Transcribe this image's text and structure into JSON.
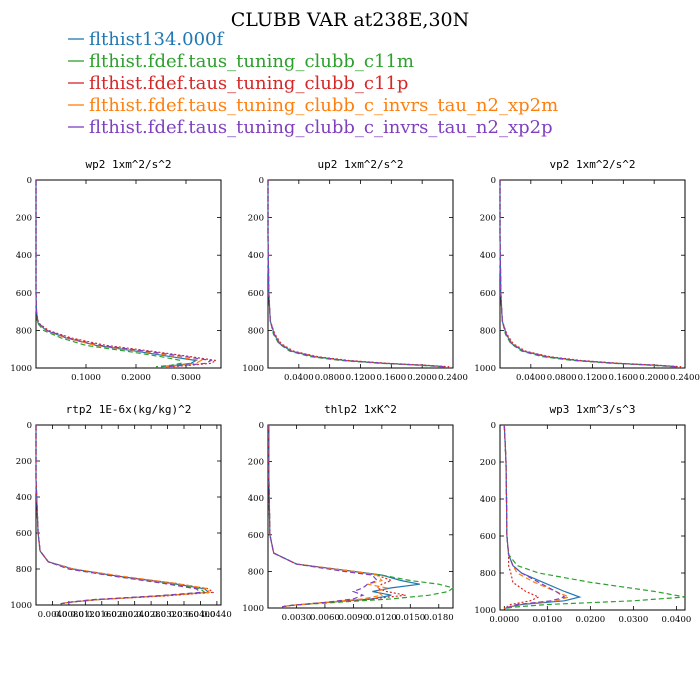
{
  "title": "CLUBB VAR at238E,30N",
  "legend": [
    {
      "name": "flthist134.000f",
      "color": "#1f77b4"
    },
    {
      "name": "flthist.fdef.taus_tuning_clubb_c11m",
      "color": "#2ca02c"
    },
    {
      "name": "flthist.fdef.taus_tuning_clubb_c11p",
      "color": "#d62728"
    },
    {
      "name": "flthist.fdef.taus_tuning_clubb_c_invrs_tau_n2_xp2m",
      "color": "#ff7f0e"
    },
    {
      "name": "flthist.fdef.taus_tuning_clubb_c_invrs_tau_n2_xp2p",
      "color": "#7f3fbf"
    }
  ],
  "chart_data": [
    {
      "type": "line",
      "title": "wp2  1xm^2/s^2",
      "xlim": [
        0,
        0.37
      ],
      "ylim": [
        0,
        1000
      ],
      "y_reversed": true,
      "xticks": [
        0.1,
        0.2,
        0.3
      ],
      "xtick_labels": [
        "0.1000",
        "0.2000",
        "0.3000"
      ],
      "yticks": [
        0,
        200,
        400,
        600,
        800,
        1000
      ],
      "ytick_labels": [
        "0",
        "200",
        "400",
        "600",
        "800",
        "1000"
      ],
      "y": [
        0,
        300,
        600,
        700,
        760,
        800,
        840,
        880,
        910,
        940,
        960,
        975,
        985,
        993
      ],
      "series": [
        {
          "values": [
            0,
            0,
            0,
            0.001,
            0.004,
            0.02,
            0.06,
            0.12,
            0.2,
            0.27,
            0.32,
            0.31,
            0.28,
            0.25
          ]
        },
        {
          "values": [
            0,
            0,
            0,
            0.001,
            0.003,
            0.015,
            0.05,
            0.1,
            0.18,
            0.25,
            0.29,
            0.29,
            0.27,
            0.24
          ]
        },
        {
          "values": [
            0,
            0,
            0,
            0.001,
            0.005,
            0.025,
            0.07,
            0.14,
            0.23,
            0.31,
            0.36,
            0.35,
            0.31,
            0.27
          ]
        },
        {
          "values": [
            0,
            0,
            0,
            0.001,
            0.004,
            0.02,
            0.06,
            0.12,
            0.21,
            0.28,
            0.33,
            0.32,
            0.29,
            0.26
          ]
        },
        {
          "values": [
            0,
            0,
            0,
            0.001,
            0.004,
            0.022,
            0.065,
            0.13,
            0.22,
            0.3,
            0.35,
            0.34,
            0.3,
            0.26
          ]
        }
      ]
    },
    {
      "type": "line",
      "title": "up2  1xm^2/s^2",
      "xlim": [
        0,
        0.24
      ],
      "ylim": [
        0,
        1000
      ],
      "y_reversed": true,
      "xticks": [
        0.04,
        0.08,
        0.12,
        0.16,
        0.2,
        0.24
      ],
      "xtick_labels": [
        "0.0400",
        "0.0800",
        "0.1200",
        "0.1600",
        "0.2000",
        "0.2400"
      ],
      "yticks": [
        0,
        200,
        400,
        600,
        800,
        1000
      ],
      "ytick_labels": [
        "0",
        "200",
        "400",
        "600",
        "800",
        "1000"
      ],
      "y": [
        0,
        300,
        600,
        750,
        820,
        870,
        910,
        940,
        960,
        975,
        985,
        993
      ],
      "series": [
        {
          "values": [
            0,
            0,
            0.001,
            0.003,
            0.008,
            0.015,
            0.03,
            0.06,
            0.1,
            0.15,
            0.2,
            0.23
          ]
        },
        {
          "values": [
            0,
            0,
            0.001,
            0.003,
            0.007,
            0.014,
            0.028,
            0.055,
            0.095,
            0.145,
            0.195,
            0.225
          ]
        },
        {
          "values": [
            0,
            0,
            0.001,
            0.003,
            0.009,
            0.017,
            0.033,
            0.065,
            0.105,
            0.155,
            0.205,
            0.235
          ]
        },
        {
          "values": [
            0,
            0,
            0.001,
            0.003,
            0.008,
            0.016,
            0.031,
            0.062,
            0.1,
            0.15,
            0.2,
            0.23
          ]
        },
        {
          "values": [
            0,
            0,
            0.001,
            0.003,
            0.008,
            0.015,
            0.03,
            0.06,
            0.1,
            0.15,
            0.2,
            0.23
          ]
        }
      ]
    },
    {
      "type": "line",
      "title": "vp2  1xm^2/s^2",
      "xlim": [
        0,
        0.24
      ],
      "ylim": [
        0,
        1000
      ],
      "y_reversed": true,
      "xticks": [
        0.04,
        0.08,
        0.12,
        0.16,
        0.2,
        0.24
      ],
      "xtick_labels": [
        "0.0400",
        "0.0800",
        "0.1200",
        "0.1600",
        "0.2000",
        "0.2400"
      ],
      "yticks": [
        0,
        200,
        400,
        600,
        800,
        1000
      ],
      "ytick_labels": [
        "0",
        "200",
        "400",
        "600",
        "800",
        "1000"
      ],
      "y": [
        0,
        300,
        600,
        750,
        820,
        870,
        910,
        940,
        960,
        975,
        985,
        993
      ],
      "series": [
        {
          "values": [
            0,
            0,
            0.001,
            0.003,
            0.008,
            0.015,
            0.03,
            0.06,
            0.1,
            0.15,
            0.2,
            0.23
          ]
        },
        {
          "values": [
            0,
            0,
            0.001,
            0.003,
            0.007,
            0.014,
            0.028,
            0.055,
            0.095,
            0.145,
            0.195,
            0.225
          ]
        },
        {
          "values": [
            0,
            0,
            0.001,
            0.003,
            0.009,
            0.017,
            0.033,
            0.065,
            0.105,
            0.155,
            0.205,
            0.235
          ]
        },
        {
          "values": [
            0,
            0,
            0.001,
            0.003,
            0.008,
            0.016,
            0.031,
            0.062,
            0.1,
            0.15,
            0.2,
            0.23
          ]
        },
        {
          "values": [
            0,
            0,
            0.001,
            0.003,
            0.008,
            0.015,
            0.03,
            0.06,
            0.1,
            0.15,
            0.2,
            0.23
          ]
        }
      ]
    },
    {
      "type": "line",
      "title": "rtp2  1E-6x(kg/kg)^2",
      "xlim": [
        0,
        0.045
      ],
      "ylim": [
        0,
        1000
      ],
      "y_reversed": true,
      "xticks": [
        0.004,
        0.008,
        0.012,
        0.016,
        0.02,
        0.024,
        0.028,
        0.032,
        0.036,
        0.04,
        0.044
      ],
      "xtick_labels": [
        "0.0040",
        "0.0080",
        "0.0120",
        "0.0160",
        "0.0200",
        "0.0240",
        "0.0280",
        "0.0320",
        "0.0360",
        "0.0400",
        "0.0440"
      ],
      "yticks": [
        0,
        200,
        400,
        600,
        800,
        1000
      ],
      "ytick_labels": [
        "0",
        "200",
        "400",
        "600",
        "800",
        "1000"
      ],
      "y": [
        0,
        300,
        600,
        700,
        760,
        800,
        840,
        880,
        910,
        930,
        950,
        970,
        985,
        993
      ],
      "series": [
        {
          "values": [
            0,
            0,
            0.0005,
            0.001,
            0.003,
            0.009,
            0.02,
            0.033,
            0.041,
            0.042,
            0.03,
            0.015,
            0.008,
            0.006
          ]
        },
        {
          "values": [
            0,
            0,
            0.0005,
            0.001,
            0.003,
            0.008,
            0.019,
            0.032,
            0.04,
            0.041,
            0.029,
            0.014,
            0.008,
            0.006
          ]
        },
        {
          "values": [
            0,
            0,
            0.0005,
            0.001,
            0.003,
            0.009,
            0.02,
            0.034,
            0.042,
            0.043,
            0.031,
            0.015,
            0.008,
            0.006
          ]
        },
        {
          "values": [
            0,
            0,
            0.0005,
            0.001,
            0.003,
            0.009,
            0.021,
            0.034,
            0.042,
            0.042,
            0.03,
            0.015,
            0.008,
            0.006
          ]
        },
        {
          "values": [
            0,
            0,
            0.0005,
            0.001,
            0.003,
            0.008,
            0.019,
            0.031,
            0.039,
            0.04,
            0.029,
            0.014,
            0.008,
            0.006
          ]
        }
      ]
    },
    {
      "type": "line",
      "title": "thlp2  1xK^2",
      "xlim": [
        0,
        0.0195
      ],
      "ylim": [
        0,
        1000
      ],
      "y_reversed": true,
      "xticks": [
        0.003,
        0.006,
        0.009,
        0.012,
        0.015,
        0.018
      ],
      "xtick_labels": [
        "0.0030",
        "0.0060",
        "0.0090",
        "0.0120",
        "0.0150",
        "0.0180"
      ],
      "yticks": [
        0,
        200,
        400,
        600,
        800,
        1000
      ],
      "ytick_labels": [
        "0",
        "200",
        "400",
        "600",
        "800",
        "1000"
      ],
      "y": [
        0,
        300,
        600,
        700,
        760,
        800,
        820,
        850,
        870,
        890,
        910,
        930,
        950,
        970,
        985,
        993
      ],
      "series": [
        {
          "values": [
            0.0001,
            0.0001,
            0.0002,
            0.0006,
            0.003,
            0.009,
            0.012,
            0.014,
            0.016,
            0.013,
            0.011,
            0.013,
            0.011,
            0.006,
            0.0025,
            0.0015
          ]
        },
        {
          "values": [
            0.0001,
            0.0001,
            0.0002,
            0.0006,
            0.003,
            0.009,
            0.012,
            0.015,
            0.018,
            0.0195,
            0.019,
            0.017,
            0.013,
            0.007,
            0.0025,
            0.0015
          ]
        },
        {
          "values": [
            0.0001,
            0.0001,
            0.0002,
            0.0006,
            0.003,
            0.009,
            0.0115,
            0.013,
            0.012,
            0.0115,
            0.0125,
            0.0145,
            0.011,
            0.006,
            0.0025,
            0.0015
          ]
        },
        {
          "values": [
            0.0001,
            0.0001,
            0.0002,
            0.0006,
            0.003,
            0.009,
            0.0115,
            0.012,
            0.0105,
            0.0125,
            0.0115,
            0.012,
            0.01,
            0.006,
            0.0025,
            0.0015
          ]
        },
        {
          "values": [
            0.0001,
            0.0001,
            0.0002,
            0.0006,
            0.003,
            0.008,
            0.011,
            0.0115,
            0.0105,
            0.01,
            0.009,
            0.01,
            0.009,
            0.006,
            0.0025,
            0.0015
          ]
        }
      ]
    },
    {
      "type": "line",
      "title": "wp3  1xm^3/s^3",
      "xlim": [
        -0.001,
        0.042
      ],
      "ylim": [
        0,
        1000
      ],
      "y_reversed": true,
      "xticks": [
        0,
        0.01,
        0.02,
        0.03,
        0.04
      ],
      "xtick_labels": [
        "0.0000",
        "0.0100",
        "0.0200",
        "0.0300",
        "0.0400"
      ],
      "yticks": [
        0,
        200,
        400,
        600,
        800,
        1000
      ],
      "ytick_labels": [
        "0",
        "200",
        "400",
        "600",
        "800",
        "1000"
      ],
      "y": [
        0,
        200,
        400,
        600,
        700,
        760,
        800,
        850,
        900,
        930,
        950,
        970,
        985,
        993
      ],
      "series": [
        {
          "values": [
            0,
            0.0004,
            0.0005,
            0.0006,
            0.001,
            0.002,
            0.004,
            0.009,
            0.014,
            0.0175,
            0.014,
            0.004,
            0.001,
            0
          ]
        },
        {
          "values": [
            0,
            0.0004,
            0.0005,
            0.0006,
            0.001,
            0.003,
            0.008,
            0.02,
            0.035,
            0.042,
            0.03,
            0.01,
            0.002,
            0
          ]
        },
        {
          "values": [
            0,
            0.0004,
            0.0005,
            0.0006,
            0.001,
            0.001,
            0.0015,
            0.002,
            0.005,
            0.008,
            0.006,
            0.0015,
            0.0005,
            0
          ]
        },
        {
          "values": [
            0,
            0.0004,
            0.0005,
            0.0006,
            0.001,
            0.002,
            0.003,
            0.007,
            0.012,
            0.015,
            0.012,
            0.003,
            0.001,
            0
          ]
        },
        {
          "values": [
            0,
            0.0004,
            0.0005,
            0.0006,
            0.001,
            0.002,
            0.004,
            0.008,
            0.012,
            0.014,
            0.011,
            0.003,
            0.001,
            0
          ]
        }
      ]
    }
  ]
}
